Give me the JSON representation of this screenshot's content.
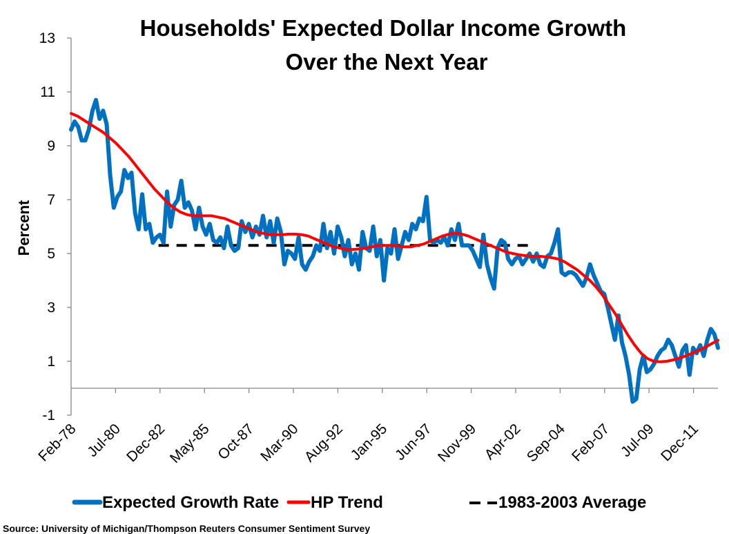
{
  "chart_data": {
    "type": "line",
    "title": "Households' Expected Dollar Income Growth",
    "subtitle": "Over the Next Year",
    "xlabel": "",
    "ylabel": "Percent",
    "ylim": [
      -1,
      13
    ],
    "yticks": [
      -1,
      1,
      3,
      5,
      7,
      9,
      11,
      13
    ],
    "x_start": "Feb-78",
    "x_step_months": 3,
    "x_tick_interval_months": 30,
    "xtick_labels": [
      "Feb-78",
      "Jul-80",
      "Dec-82",
      "May-85",
      "Oct-87",
      "Mar-90",
      "Aug-92",
      "Jan-95",
      "Jun-97",
      "Nov-99",
      "Apr-02",
      "Sep-04",
      "Feb-07",
      "Jul-09",
      "Dec-11"
    ],
    "grid": false,
    "legend_position": "bottom",
    "series": [
      {
        "name": "Expected Growth Rate",
        "color": "#0070C0",
        "style": "solid",
        "values": [
          9.6,
          9.9,
          9.7,
          9.2,
          9.2,
          9.6,
          10.3,
          10.7,
          10.0,
          10.3,
          9.8,
          7.9,
          6.7,
          7.1,
          7.3,
          8.1,
          7.8,
          8.0,
          6.5,
          5.9,
          7.2,
          5.9,
          6.1,
          5.4,
          5.6,
          5.7,
          5.4,
          7.3,
          6.0,
          6.8,
          7.0,
          7.7,
          6.7,
          6.9,
          6.6,
          5.9,
          6.7,
          6.0,
          5.7,
          6.1,
          5.5,
          5.4,
          5.6,
          5.2,
          6.0,
          5.3,
          5.1,
          5.2,
          6.2,
          5.8,
          6.1,
          5.6,
          6.0,
          5.7,
          6.4,
          5.6,
          6.2,
          5.4,
          6.3,
          5.8,
          4.6,
          5.1,
          5.0,
          4.8,
          5.6,
          4.6,
          4.4,
          4.7,
          4.9,
          5.3,
          5.1,
          6.1,
          5.2,
          5.8,
          5.0,
          6.0,
          5.6,
          4.9,
          5.5,
          4.6,
          5.0,
          4.4,
          5.8,
          5.2,
          5.1,
          6.0,
          4.9,
          5.5,
          4.0,
          5.2,
          5.0,
          5.9,
          4.8,
          5.3,
          5.8,
          5.5,
          6.1,
          5.9,
          6.3,
          6.2,
          7.1,
          5.5,
          5.4,
          5.5,
          5.4,
          5.6,
          5.3,
          5.9,
          5.5,
          6.1,
          5.3,
          5.3,
          5.3,
          5.1,
          4.8,
          4.5,
          5.7,
          4.6,
          4.1,
          3.7,
          5.2,
          5.5,
          5.4,
          4.8,
          4.6,
          4.8,
          4.9,
          4.6,
          4.8,
          5.0,
          4.7,
          5.0,
          4.6,
          4.5,
          4.9,
          5.0,
          5.4,
          5.9,
          4.3,
          4.2,
          4.3,
          4.3,
          4.2,
          4.0,
          3.8,
          4.1,
          4.6,
          4.2,
          3.9,
          3.6,
          3.5,
          3.0,
          2.4,
          1.8,
          2.7,
          1.7,
          1.2,
          0.5,
          -0.5,
          -0.4,
          0.7,
          1.2,
          0.6,
          0.7,
          0.9,
          1.2,
          1.4,
          1.5,
          1.8,
          1.6,
          1.2,
          0.8,
          1.4,
          1.6,
          0.5,
          1.5,
          1.3,
          1.6,
          1.2,
          1.8,
          2.2,
          2.0,
          1.5
        ]
      },
      {
        "name": "HP Trend",
        "color": "#FF0000",
        "style": "solid",
        "values": [
          10.2,
          10.1,
          9.95,
          9.8,
          9.65,
          9.5,
          9.3,
          9.1,
          8.85,
          8.6,
          8.3,
          8.0,
          7.7,
          7.4,
          7.15,
          6.9,
          6.7,
          6.55,
          6.45,
          6.4,
          6.4,
          6.4,
          6.4,
          6.35,
          6.3,
          6.2,
          6.1,
          6.0,
          5.9,
          5.8,
          5.75,
          5.7,
          5.7,
          5.7,
          5.72,
          5.72,
          5.7,
          5.65,
          5.55,
          5.45,
          5.35,
          5.25,
          5.2,
          5.15,
          5.15,
          5.17,
          5.2,
          5.25,
          5.3,
          5.3,
          5.3,
          5.28,
          5.25,
          5.25,
          5.3,
          5.35,
          5.45,
          5.55,
          5.65,
          5.72,
          5.75,
          5.72,
          5.65,
          5.55,
          5.45,
          5.35,
          5.25,
          5.15,
          5.05,
          5.0,
          4.95,
          4.92,
          4.9,
          4.9,
          4.88,
          4.85,
          4.8,
          4.7,
          4.55,
          4.4,
          4.2,
          4.0,
          3.75,
          3.45,
          3.1,
          2.75,
          2.35,
          1.95,
          1.6,
          1.3,
          1.1,
          1.0,
          0.98,
          1.0,
          1.05,
          1.12,
          1.2,
          1.3,
          1.4,
          1.52,
          1.65,
          1.78
        ]
      },
      {
        "name": "1983-2003 Average",
        "color": "#000000",
        "style": "dashed",
        "value": 5.3,
        "start": "Jan-83",
        "end": "Dec-03"
      }
    ],
    "source": "Source: University of Michigan/Thompson  Reuters Consumer Sentiment Survey"
  }
}
